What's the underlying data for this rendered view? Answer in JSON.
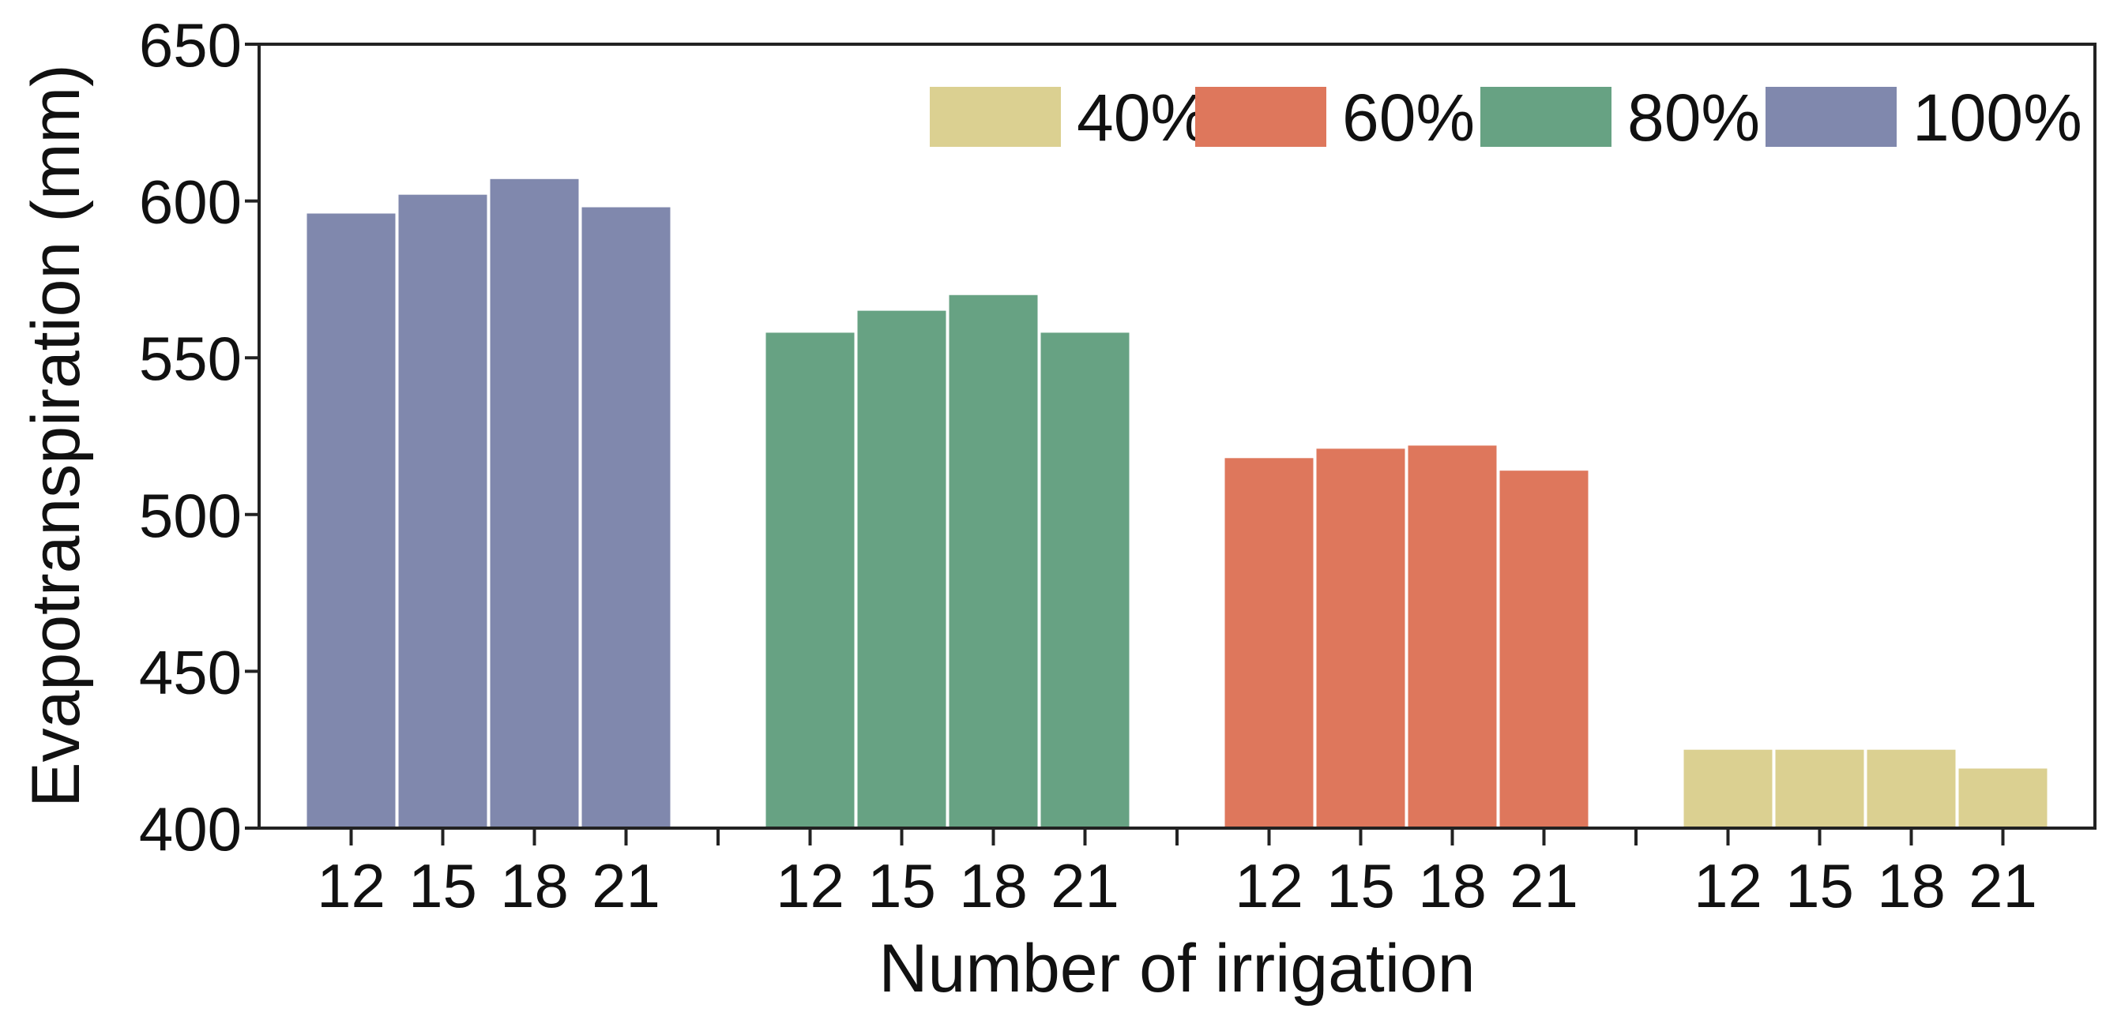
{
  "chart_data": {
    "type": "bar",
    "title": "",
    "xlabel": "Number of irrigation",
    "ylabel": "Evapotranspiration (mm)",
    "ylim": [
      400,
      650
    ],
    "yticks": [
      "400",
      "450",
      "500",
      "550",
      "600",
      "650"
    ],
    "categories": [
      "12",
      "15",
      "18",
      "21"
    ],
    "group_order": [
      "100%",
      "80%",
      "60%",
      "40%"
    ],
    "legend_order": [
      "40%",
      "60%",
      "80%",
      "100%"
    ],
    "legend_position": "top-right",
    "grid": false,
    "series": [
      {
        "name": "100%",
        "color": "#8088ad",
        "values": [
          596,
          602,
          607,
          598
        ]
      },
      {
        "name": "80%",
        "color": "#67a283",
        "values": [
          558,
          565,
          570,
          558
        ]
      },
      {
        "name": "60%",
        "color": "#de775c",
        "values": [
          518,
          521,
          522,
          514
        ]
      },
      {
        "name": "40%",
        "color": "#dbd091",
        "values": [
          425,
          425,
          425,
          419
        ]
      }
    ]
  }
}
